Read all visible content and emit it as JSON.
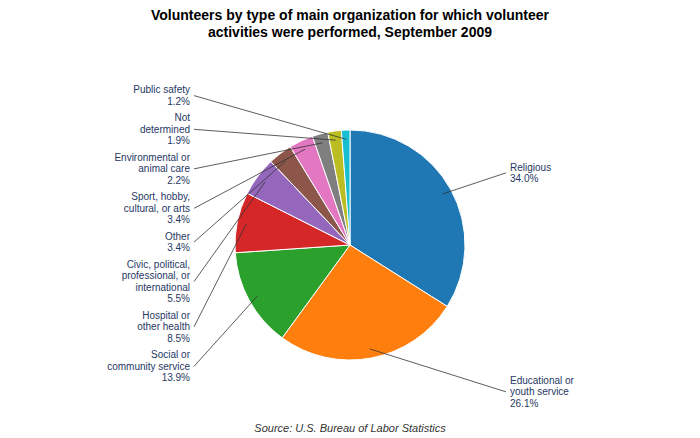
{
  "chart_data": {
    "type": "pie",
    "title": "Volunteers by type of main organization for which volunteer\nactivities were performed, September 2009",
    "categories": [
      "Religious",
      "Educational or\nyouth service",
      "Social or\ncommunity service",
      "Hospital or\nother health",
      "Civic, political,\nprofessional, or\ninternational",
      "Other",
      "Sport, hobby,\ncultural, or arts",
      "Environmental or\nanimal care",
      "Not\ndetermined",
      "Public safety"
    ],
    "values": [
      34.0,
      26.1,
      13.9,
      8.5,
      5.5,
      3.4,
      3.4,
      2.2,
      1.9,
      1.2
    ],
    "value_labels": [
      "34.0%",
      "26.1%",
      "13.9%",
      "8.5%",
      "5.5%",
      "3.4%",
      "3.4%",
      "2.2%",
      "1.9%",
      "1.2%"
    ],
    "data_labels": true,
    "annotations": [
      "Source: U.S. Bureau of Labor Statistics"
    ]
  }
}
